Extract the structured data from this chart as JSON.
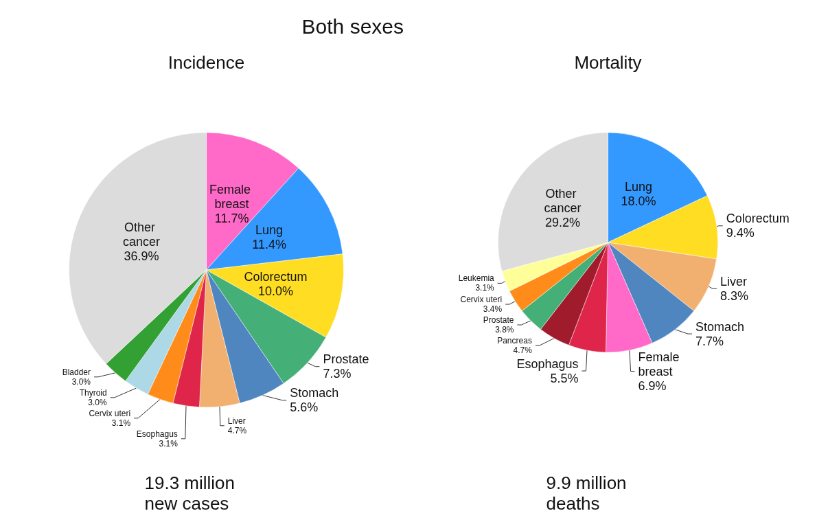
{
  "chart_data": [
    {
      "type": "pie",
      "title": "Incidence",
      "annotations": [
        "Both sexes",
        "19.3 million new cases"
      ],
      "legend": false,
      "value_labels": [
        "11.7%",
        "11.4%",
        "10.0%",
        "7.3%",
        "5.6%",
        "4.7%",
        "3.1%",
        "3.1%",
        "3.0%",
        "3.0%",
        "36.9%"
      ],
      "categories": [
        "Female breast",
        "Lung",
        "Colorectum",
        "Prostate",
        "Stomach",
        "Liver",
        "Esophagus",
        "Cervix uteri",
        "Thyroid",
        "Bladder",
        "Other cancer"
      ],
      "values": [
        11.7,
        11.4,
        10.0,
        7.3,
        5.6,
        4.7,
        3.1,
        3.1,
        3.0,
        3.0,
        36.9
      ],
      "colors": [
        "#ff69c8",
        "#3399ff",
        "#ffdd22",
        "#44b077",
        "#4f86c0",
        "#f2b070",
        "#e0254a",
        "#ff8c1a",
        "#add8e6",
        "#33a033",
        "#dcdcdc"
      ]
    },
    {
      "type": "pie",
      "title": "Mortality",
      "annotations": [
        "9.9 million deaths"
      ],
      "legend": false,
      "value_labels": [
        "18.0%",
        "9.4%",
        "8.3%",
        "7.7%",
        "6.9%",
        "5.5%",
        "4.7%",
        "3.8%",
        "3.4%",
        "3.1%",
        "29.2%"
      ],
      "categories": [
        "Lung",
        "Colorectum",
        "Liver",
        "Stomach",
        "Female breast",
        "Esophagus",
        "Pancreas",
        "Prostate",
        "Cervix uteri",
        "Leukemia",
        "Other cancer"
      ],
      "values": [
        18.0,
        9.4,
        8.3,
        7.7,
        6.9,
        5.5,
        4.7,
        3.8,
        3.4,
        3.1,
        29.2
      ],
      "colors": [
        "#3399ff",
        "#ffdd22",
        "#f2b070",
        "#4f86c0",
        "#ff69c8",
        "#e0254a",
        "#a01c2c",
        "#44b077",
        "#ff8c1a",
        "#ffff99",
        "#dcdcdc"
      ]
    }
  ]
}
